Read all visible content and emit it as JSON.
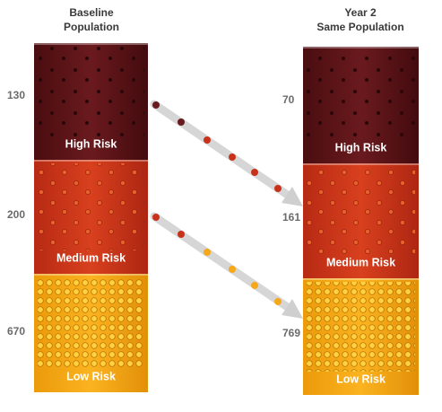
{
  "columns": [
    {
      "title_lines": [
        "Baseline",
        "Population"
      ],
      "segments": [
        {
          "label": "High Risk",
          "count": 130
        },
        {
          "label": "Medium Risk",
          "count": 200
        },
        {
          "label": "Low Risk",
          "count": 670
        }
      ]
    },
    {
      "title_lines": [
        "Year 2",
        "Same Population"
      ],
      "segments": [
        {
          "label": "High Risk",
          "count": 70
        },
        {
          "label": "Medium Risk",
          "count": 161
        },
        {
          "label": "Low Risk",
          "count": 769
        }
      ]
    }
  ]
}
